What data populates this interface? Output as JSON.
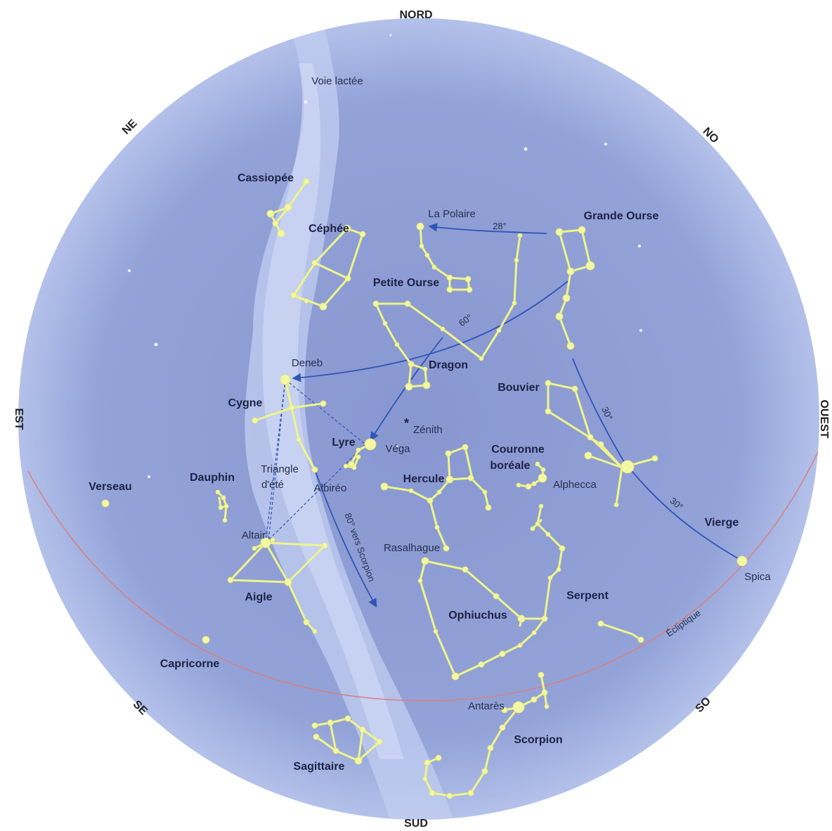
{
  "directions": {
    "nord": "NORD",
    "sud": "SUD",
    "est": "EST",
    "ouest": "OUEST",
    "ne": "NE",
    "no": "NO",
    "se": "SE",
    "so": "SO"
  },
  "features": {
    "milky_way": "Voie lactée",
    "zenith": "Zénith",
    "ecliptic": "Écliptique",
    "summer_triangle_1": "Triangle",
    "summer_triangle_2": "d'été",
    "to_scorpion": "80° vers Scorpion"
  },
  "constellations": {
    "cassiopee": "Cassiopée",
    "cephee": "Céphée",
    "petite_ourse": "Petite Ourse",
    "grande_ourse": "Grande Ourse",
    "dragon": "Dragon",
    "bouvier": "Bouvier",
    "cygne": "Cygne",
    "lyre": "Lyre",
    "couronne_1": "Couronne",
    "couronne_2": "boréale",
    "hercule": "Hercule",
    "dauphin": "Dauphin",
    "verseau": "Verseau",
    "aigle": "Aigle",
    "vierge": "Vierge",
    "serpent": "Serpent",
    "ophiuchus": "Ophiuchus",
    "capricorne": "Capricorne",
    "sagittaire": "Sagittaire",
    "scorpion": "Scorpion"
  },
  "stars": {
    "polaire": "La Polaire",
    "deneb": "Deneb",
    "vega": "Véga",
    "albireo": "Albiréo",
    "altair": "Altair",
    "rasalhague": "Rasalhague",
    "alphecca": "Alphecca",
    "spica": "Spica",
    "antares": "Antarès"
  },
  "angles": {
    "polaire_to_ourse": "28°",
    "to_deneb": "60°",
    "ourse_to_arcturus": "30°",
    "arcturus_to_spica": "30°"
  },
  "colors": {
    "sky": "#8f9fd4",
    "sky_edge": "#a9b8e6",
    "milky_way": "#c3cff0",
    "constellation_line": "#eef58a",
    "star": "#f4f7a6",
    "pointer_line": "#2f55b8",
    "ecliptic": "#d98080"
  }
}
